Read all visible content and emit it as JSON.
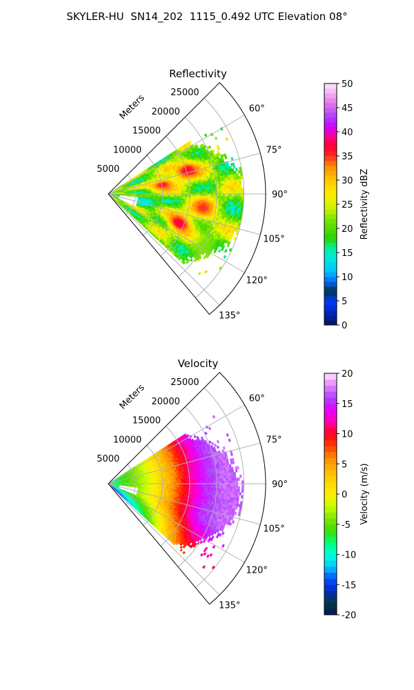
{
  "figure_title": "SKYLER-HU  SN14_202  1115_0.492 UTC Elevation 08°",
  "chart_data": [
    {
      "type": "heatmap",
      "projection": "polar-sector",
      "title": "Reflectivity",
      "radial_label": "Meters",
      "radial_ticks": [
        "5000",
        "10000",
        "15000",
        "20000",
        "25000"
      ],
      "radial_tick_values": [
        5000,
        10000,
        15000,
        20000,
        25000
      ],
      "rlim": [
        0,
        29000
      ],
      "angle_ticks": [
        "60°",
        "75°",
        "90°",
        "105°",
        "120°",
        "135°"
      ],
      "angle_tick_values": [
        60,
        75,
        90,
        105,
        120,
        135
      ],
      "theta_range_deg": [
        45,
        140
      ],
      "data_theta_range_deg": [
        57,
        133
      ],
      "grid": true,
      "colorbar": {
        "label": "Reflectivity dBZ",
        "ticks": [
          "0",
          "5",
          "10",
          "15",
          "20",
          "25",
          "30",
          "35",
          "40",
          "45",
          "50"
        ],
        "range": [
          0,
          50
        ],
        "levels": 50
      },
      "field_description": "scattered echoes 15–40 dBZ, strongest cores (35–40 dBZ) near azimuth 75° and 110° at 12–18 km",
      "cores": [
        {
          "azimuth": 73,
          "range": 15000,
          "value": 37
        },
        {
          "azimuth": 80,
          "range": 10000,
          "value": 36
        },
        {
          "azimuth": 98,
          "range": 17500,
          "value": 35
        },
        {
          "azimuth": 112,
          "range": 14000,
          "value": 38
        },
        {
          "azimuth": 100,
          "range": 6500,
          "value": 13
        },
        {
          "azimuth": 118,
          "range": 20000,
          "value": 22
        }
      ]
    },
    {
      "type": "heatmap",
      "projection": "polar-sector",
      "title": "Velocity",
      "radial_label": "Meters",
      "radial_ticks": [
        "5000",
        "10000",
        "15000",
        "20000",
        "25000"
      ],
      "radial_tick_values": [
        5000,
        10000,
        15000,
        20000,
        25000
      ],
      "rlim": [
        0,
        29000
      ],
      "angle_ticks": [
        "60°",
        "75°",
        "90°",
        "105°",
        "120°",
        "135°"
      ],
      "angle_tick_values": [
        60,
        75,
        90,
        105,
        120,
        135
      ],
      "theta_range_deg": [
        45,
        140
      ],
      "data_theta_range_deg": [
        57,
        133
      ],
      "grid": true,
      "colorbar": {
        "label": "Velocity (m/s)",
        "ticks": [
          "-20",
          "-15",
          "-10",
          "-5",
          "0",
          "5",
          "10",
          "15",
          "20"
        ],
        "range": [
          -20,
          20
        ],
        "levels": 40
      },
      "field_description": "velocities increase with range: about -8 m/s near radar, 0 m/s near 10 km, 10 m/s near 15 km, 15–18 m/s beyond 17 km",
      "range_profile": [
        {
          "range": 0,
          "value": -9
        },
        {
          "range": 3000,
          "value": -6
        },
        {
          "range": 6000,
          "value": -3
        },
        {
          "range": 9000,
          "value": 1
        },
        {
          "range": 11500,
          "value": 5
        },
        {
          "range": 13500,
          "value": 9
        },
        {
          "range": 15500,
          "value": 12
        },
        {
          "range": 17500,
          "value": 15
        },
        {
          "range": 21000,
          "value": 17
        },
        {
          "range": 25000,
          "value": 17
        }
      ]
    }
  ]
}
